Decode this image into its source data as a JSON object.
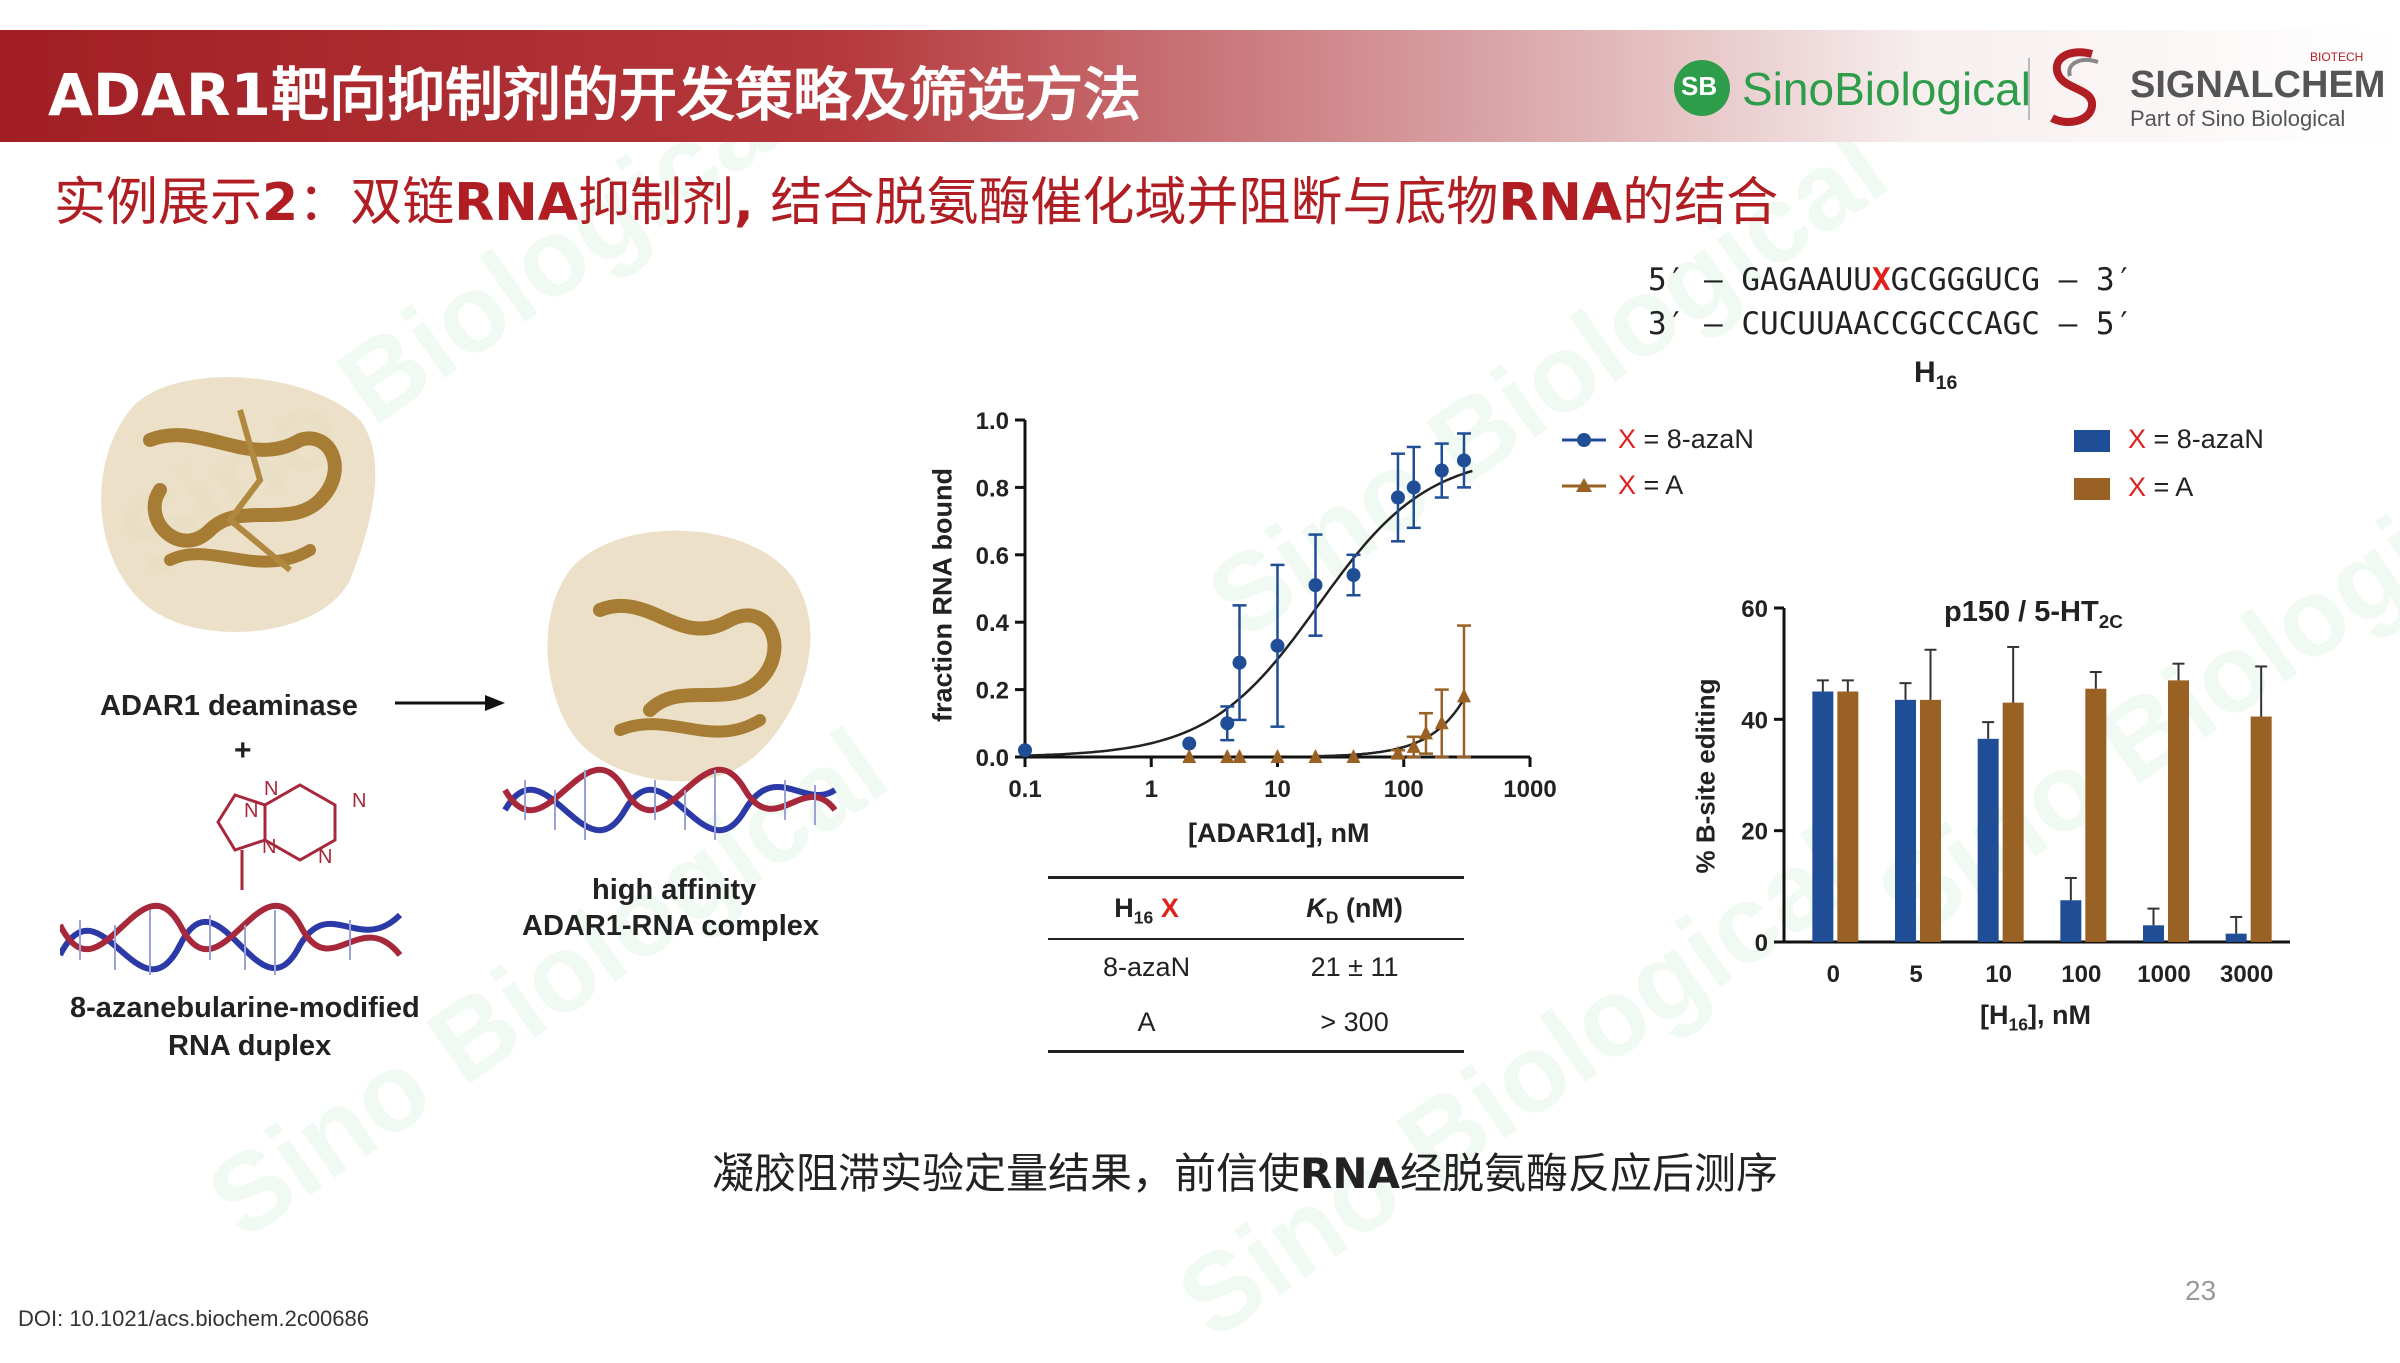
{
  "header": {
    "title": "ADAR1靶向抑制剂的开发策略及筛选方法",
    "logo_sino": "SinoBiological",
    "logo_sb": "SB",
    "logo_signalchem": "SIGNALCHEM",
    "logo_biotech": "BIOTECH",
    "logo_part_of": "Part of Sino Biological"
  },
  "subtitle": {
    "prefix": "实例展示",
    "num": "2",
    "mid1": "：双链",
    "rna1": "RNA",
    "mid2": "抑制剂",
    "comma": ",",
    "mid3": " 结合脱氨酶催化域并阻断与底物",
    "rna2": "RNA",
    "suffix": "的结合"
  },
  "sequence": {
    "line1_pre": "5′ — GAGAAUU",
    "line1_x": "X",
    "line1_post": "GCGGGUCG — 3′",
    "line2": "3′ — CUCUUAACCGCCCAGC — 5′",
    "name": "H",
    "name_sub": "16"
  },
  "scheme": {
    "deaminase_label": "ADAR1 deaminase",
    "plus": "+",
    "duplex_label_1": "8-azanebularine-modified",
    "duplex_label_2": "RNA duplex",
    "complex_label_1": "high affinity",
    "complex_label_2": "ADAR1-RNA complex",
    "ring_atoms": [
      "N",
      "N",
      "N",
      "N",
      "N"
    ]
  },
  "colors": {
    "brand_red": "#a11f24",
    "blue": "#1f4e96",
    "brown": "#9a6124",
    "x_red": "#e0201c"
  },
  "chart_data": [
    {
      "type": "scatter",
      "xlabel": "[ADAR1d], nM",
      "ylabel": "fraction RNA bound",
      "xscale": "log",
      "xlim": [
        0.1,
        1000
      ],
      "ylim": [
        0.0,
        1.0
      ],
      "xticks": [
        "0.1",
        "1",
        "10",
        "100",
        "1000"
      ],
      "yticks": [
        "0.0",
        "0.2",
        "0.4",
        "0.6",
        "0.8",
        "1.0"
      ],
      "legend_position": "right",
      "series": [
        {
          "name": "X = 8-azaN",
          "marker": "circle",
          "color": "#1f4e96",
          "x": [
            0.1,
            2,
            4,
            5,
            10,
            20,
            40,
            90,
            120,
            200,
            300
          ],
          "y": [
            0.02,
            0.04,
            0.1,
            0.28,
            0.33,
            0.51,
            0.54,
            0.77,
            0.8,
            0.85,
            0.88
          ],
          "err": [
            0.0,
            0.0,
            0.05,
            0.17,
            0.24,
            0.15,
            0.06,
            0.13,
            0.12,
            0.08,
            0.08
          ],
          "fit": {
            "kd": 21,
            "bmax": 0.9
          }
        },
        {
          "name": "X = A",
          "marker": "triangle",
          "color": "#9a6124",
          "x": [
            2,
            4,
            5,
            10,
            20,
            40,
            90,
            120,
            150,
            200,
            300
          ],
          "y": [
            0.0,
            0.0,
            0.0,
            0.0,
            0.0,
            0.0,
            0.01,
            0.03,
            0.07,
            0.1,
            0.18
          ],
          "err": [
            0.0,
            0.0,
            0.0,
            0.0,
            0.0,
            0.0,
            0.01,
            0.03,
            0.06,
            0.1,
            0.21
          ]
        }
      ]
    },
    {
      "type": "table",
      "header": [
        {
          "main": "H",
          "sub": "16",
          "x": " X"
        },
        {
          "main": "K",
          "sub": "D",
          "rest": " (nM)"
        }
      ],
      "rows": [
        [
          "8-azaN",
          "21 ± 11"
        ],
        [
          "A",
          "> 300"
        ]
      ]
    },
    {
      "type": "bar",
      "title": "p150 / 5-HT",
      "title_sub": "2C",
      "xlabel": "[H",
      "xlabel_sub": "16",
      "xlabel_rest": "], nM",
      "ylabel": "% B-site editing",
      "categories": [
        "0",
        "5",
        "10",
        "100",
        "1000",
        "3000"
      ],
      "ylim": [
        0,
        60
      ],
      "yticks": [
        "0",
        "20",
        "40",
        "60"
      ],
      "legend_position": "top",
      "series": [
        {
          "name": "X = 8-azaN",
          "color": "#1f4e96",
          "values": [
            45,
            43.5,
            36.5,
            7.5,
            3,
            1.5
          ],
          "err": [
            2,
            3,
            3,
            4,
            3,
            3
          ]
        },
        {
          "name": "X = A",
          "color": "#9a6124",
          "values": [
            45,
            43.5,
            43,
            45.5,
            47,
            40.5
          ],
          "err": [
            2,
            9,
            10,
            3,
            3,
            9
          ]
        }
      ]
    }
  ],
  "caption": {
    "pre": "凝胶阻滞实验定量结果，前信使",
    "rna": "RNA",
    "post": "经脱氨酶反应后测序"
  },
  "footer": {
    "doi": "DOI: 10.1021/acs.biochem.2c00686",
    "page": "23"
  },
  "watermark": "Sino Biological"
}
